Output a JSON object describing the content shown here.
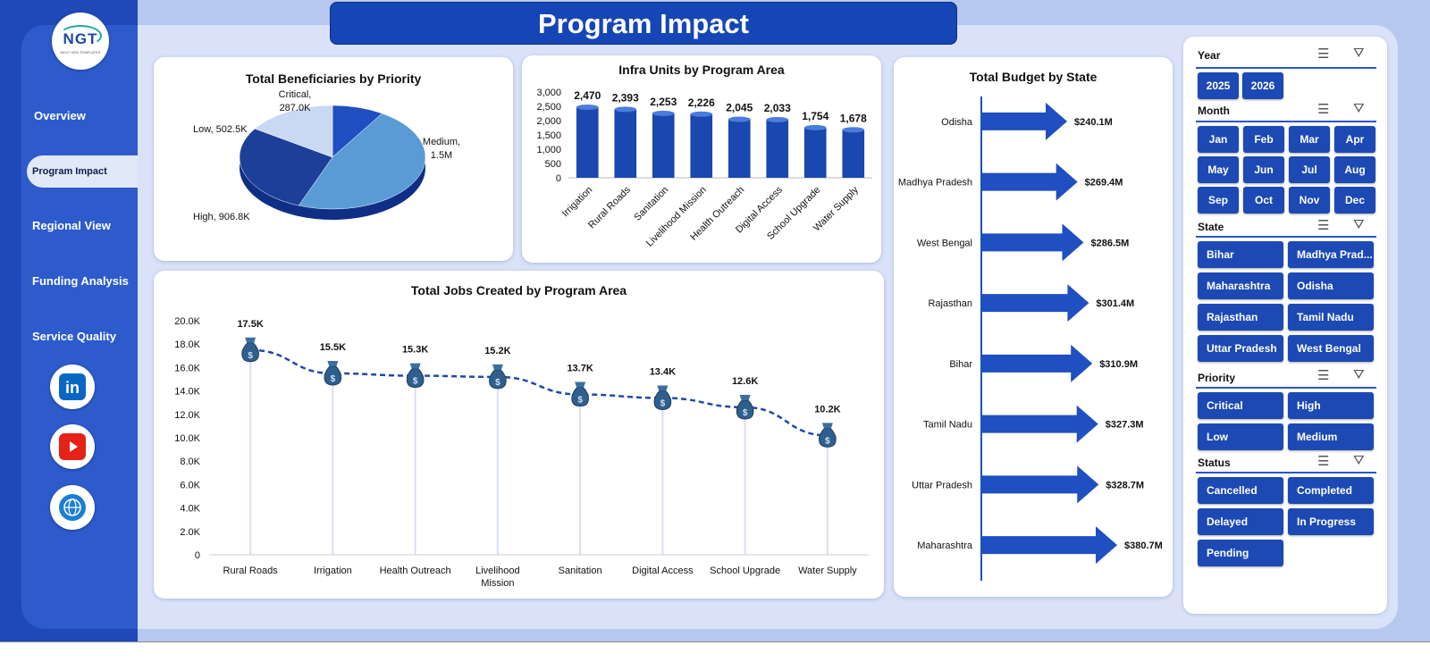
{
  "header": {
    "title": "Program Impact"
  },
  "logo": {
    "text": "NGT",
    "subtext": "NEXT GEN TEMPLATES"
  },
  "nav": {
    "items": [
      "Overview",
      "Program  Impact",
      "Regional View",
      "Funding Analysis",
      "Service Quality"
    ],
    "active": "Program  Impact"
  },
  "social": [
    "linkedin-icon",
    "youtube-icon",
    "web-icon"
  ],
  "colors": {
    "primary": "#1c49b3",
    "accent": "#5b9bd5",
    "lightFill": "#c9d8f3",
    "bg": "#d9e2f8"
  },
  "chart_data": [
    {
      "type": "pie",
      "title": "Total Beneficiaries  by Priority",
      "slices": [
        {
          "label": "Critical",
          "value": 287.0,
          "display": "287.0K"
        },
        {
          "label": "Medium",
          "value": 1500,
          "display": "1.5M"
        },
        {
          "label": "High",
          "value": 906.8,
          "display": "906.8K"
        },
        {
          "label": "Low",
          "value": 502.5,
          "display": "502.5K"
        }
      ]
    },
    {
      "type": "bar",
      "title": "Infra Units by Program Area",
      "categories": [
        "Irrigation",
        "Rural Roads",
        "Sanitation",
        "Livelihood Mission",
        "Health Outreach",
        "Digital Access",
        "School Upgrade",
        "Water Supply"
      ],
      "values": [
        2470,
        2393,
        2253,
        2226,
        2045,
        2033,
        1754,
        1678
      ],
      "labels": [
        "2,470",
        "2,393",
        "2,253",
        "2,226",
        "2,045",
        "2,033",
        "1,754",
        "1,678"
      ],
      "yticks": [
        "0",
        "500",
        "1,000",
        "1,500",
        "2,000",
        "2,500",
        "3,000"
      ],
      "ylim": [
        0,
        3000
      ]
    },
    {
      "type": "line",
      "title": "Total Jobs Created by Program Area",
      "categories": [
        "Rural Roads",
        "Irrigation",
        "Health Outreach",
        "Livelihood Mission",
        "Sanitation",
        "Digital Access",
        "School Upgrade",
        "Water Supply"
      ],
      "values": [
        17.5,
        15.5,
        15.3,
        15.2,
        13.7,
        13.4,
        12.6,
        10.2
      ],
      "labels": [
        "17.5K",
        "15.5K",
        "15.3K",
        "15.2K",
        "13.7K",
        "13.4K",
        "12.6K",
        "10.2K"
      ],
      "yticks": [
        "0",
        "2.0K",
        "4.0K",
        "6.0K",
        "8.0K",
        "10.0K",
        "12.0K",
        "14.0K",
        "16.0K",
        "18.0K",
        "20.0K"
      ],
      "ylim": [
        0,
        20
      ]
    },
    {
      "type": "bar",
      "title": "Total Budget by State",
      "categories": [
        "Odisha",
        "Madhya Pradesh",
        "West Bengal",
        "Rajasthan",
        "Bihar",
        "Tamil Nadu",
        "Uttar Pradesh",
        "Maharashtra"
      ],
      "values": [
        240.1,
        269.4,
        286.5,
        301.4,
        310.9,
        327.3,
        328.7,
        380.7
      ],
      "labels": [
        "$240.1M",
        "$269.4M",
        "$286.5M",
        "$301.4M",
        "$310.9M",
        "$327.3M",
        "$328.7M",
        "$380.7M"
      ]
    }
  ],
  "slicers": {
    "year": {
      "title": "Year",
      "options": [
        "2025",
        "2026"
      ]
    },
    "month": {
      "title": "Month",
      "options": [
        "Jan",
        "Feb",
        "Mar",
        "Apr",
        "May",
        "Jun",
        "Jul",
        "Aug",
        "Sep",
        "Oct",
        "Nov",
        "Dec"
      ]
    },
    "state": {
      "title": "State",
      "options": [
        "Bihar",
        "Madhya Prad...",
        "Maharashtra",
        "Odisha",
        "Rajasthan",
        "Tamil Nadu",
        "Uttar Pradesh",
        "West Bengal"
      ]
    },
    "priority": {
      "title": "Priority",
      "options": [
        "Critical",
        "High",
        "Low",
        "Medium"
      ]
    },
    "status": {
      "title": "Status",
      "options": [
        "Cancelled",
        "Completed",
        "Delayed",
        "In Progress",
        "Pending"
      ]
    }
  }
}
